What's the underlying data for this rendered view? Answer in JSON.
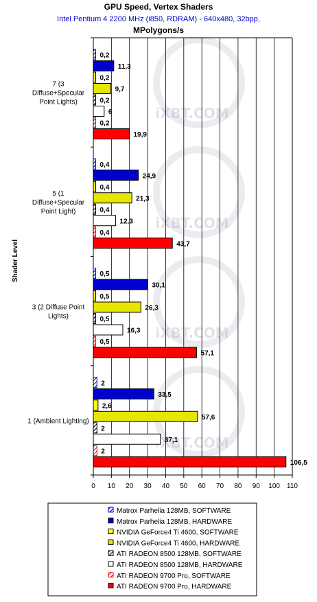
{
  "title": "GPU Speed,  Vertex Shaders",
  "subtitle": "Intel Pentium 4 2200 MHz (i850, RDRAM) - 640x480, 32bpp,",
  "unit": "MPolygons/s",
  "watermark": "iXBT.COM",
  "chart_data": {
    "type": "bar",
    "orientation": "horizontal",
    "ylabel": "Shader Level",
    "xlim": [
      0,
      110
    ],
    "xticks": [
      0,
      10,
      20,
      30,
      40,
      50,
      60,
      70,
      80,
      90,
      100,
      110
    ],
    "grid": true,
    "legend_position": "bottom",
    "categories": [
      "7 (3 Diffuse+Specular Point Lights)",
      "5 (1 Diffuse+Specular Point Light)",
      "3 (2 Diffuse Point Lights)",
      "1 (Ambient Lighting)"
    ],
    "series": [
      {
        "name": "Matrox Parhelia 128MB, SOFTWARE",
        "color": "#ffffff",
        "stroke": "#0000cc",
        "pattern": "hatch",
        "values": [
          0.2,
          0.4,
          0.5,
          2
        ],
        "labels": [
          "0,2",
          "0,4",
          "0,5",
          "2"
        ]
      },
      {
        "name": "Matrox Parhelia 128MB, HARDWARE",
        "color": "#0000cc",
        "stroke": "#000000",
        "pattern": "solid",
        "values": [
          11.3,
          24.9,
          30.1,
          33.5
        ],
        "labels": [
          "11,3",
          "24,9",
          "30,1",
          "33,5"
        ]
      },
      {
        "name": "NVIDIA GeForce4 Ti 4600, SOFTWARE",
        "color": "#ffff00",
        "stroke": "#000000",
        "pattern": "solid",
        "values": [
          0.2,
          0.4,
          0.5,
          2.6
        ],
        "labels": [
          "0,2",
          "0,4",
          "0,5",
          "2,6"
        ]
      },
      {
        "name": "NVIDIA GeForce4 Ti 4600, HARDWARE",
        "color": "#e6e600",
        "stroke": "#000000",
        "pattern": "solid",
        "values": [
          9.7,
          21.3,
          26.3,
          57.6
        ],
        "labels": [
          "9,7",
          "21,3",
          "26,3",
          "57,6"
        ]
      },
      {
        "name": "ATI RADEON 8500 128MB, SOFTWARE",
        "color": "#ffffff",
        "stroke": "#000000",
        "pattern": "hatch",
        "values": [
          0.2,
          0.4,
          0.5,
          2
        ],
        "labels": [
          "0,2",
          "0,4",
          "0,5",
          "2"
        ]
      },
      {
        "name": "ATI RADEON 8500 128MB, HARDWARE",
        "color": "#ffffff",
        "stroke": "#000000",
        "pattern": "solid",
        "values": [
          6,
          12.3,
          16.3,
          37.1
        ],
        "labels": [
          "6",
          "12,3",
          "16,3",
          "37,1"
        ]
      },
      {
        "name": "ATI RADEON 9700 Pro, SOFTWARE",
        "color": "#ffffff",
        "stroke": "#ff0000",
        "pattern": "hatch",
        "values": [
          0.2,
          0.4,
          0.5,
          2
        ],
        "labels": [
          "0,2",
          "0,4",
          "0,5",
          "2"
        ]
      },
      {
        "name": "ATI RADEON 9700 Pro, HARDWARE",
        "color": "#ff0000",
        "stroke": "#000000",
        "pattern": "solid",
        "values": [
          19.9,
          43.7,
          57.1,
          106.5
        ],
        "labels": [
          "19,9",
          "43,7",
          "57,1",
          "106,5"
        ]
      }
    ]
  }
}
